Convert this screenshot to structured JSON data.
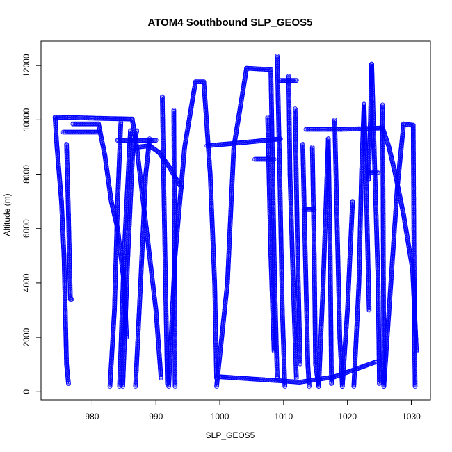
{
  "chart_data": {
    "type": "scatter",
    "title": "ATOM4 Southbound SLP_GEOS5",
    "xlabel": "SLP_GEOS5",
    "ylabel": "Altitude (m)",
    "xlim": [
      972,
      1033
    ],
    "ylim": [
      -300,
      12900
    ],
    "x_ticks": [
      980,
      990,
      1000,
      1010,
      1020,
      1030
    ],
    "y_ticks": [
      0,
      2000,
      4000,
      6000,
      8000,
      10000,
      12000
    ],
    "grid": false,
    "legend": "none",
    "marker": "open-circle",
    "series": [
      {
        "color": "#0000ff",
        "segments": [
          [
            [
              974.2,
              10100
            ],
            [
              982.0,
              10050
            ],
            [
              986.3,
              10030
            ]
          ],
          [
            [
              974.2,
              10100
            ],
            [
              974.5,
              9000
            ],
            [
              975.2,
              7000
            ],
            [
              975.6,
              5000
            ],
            [
              975.8,
              3000
            ],
            [
              976.0,
              1000
            ],
            [
              976.3,
              300
            ]
          ],
          [
            [
              975.5,
              9550
            ],
            [
              981.2,
              9550
            ]
          ],
          [
            [
              976.0,
              9100
            ],
            [
              976.3,
              6500
            ],
            [
              976.6,
              3400
            ],
            [
              976.8,
              3400
            ]
          ],
          [
            [
              977.0,
              9850
            ],
            [
              981.0,
              9850
            ],
            [
              982.0,
              8700
            ],
            [
              983.0,
              7000
            ],
            [
              984.0,
              6000
            ],
            [
              985.0,
              4000
            ],
            [
              985.4,
              2000
            ]
          ],
          [
            [
              982.8,
              200
            ],
            [
              983.5,
              3000
            ],
            [
              984.0,
              7000
            ],
            [
              984.5,
              9900
            ]
          ],
          [
            [
              984.3,
              200
            ],
            [
              985.0,
              5000
            ],
            [
              986.0,
              9600
            ]
          ],
          [
            [
              984.8,
              200
            ],
            [
              985.6,
              5000
            ],
            [
              986.4,
              9000
            ],
            [
              987.0,
              9600
            ]
          ],
          [
            [
              984.0,
              9250
            ],
            [
              990.0,
              9250
            ]
          ],
          [
            [
              986.3,
              10000
            ],
            [
              987.0,
              9000
            ],
            [
              988.5,
              6000
            ],
            [
              990.0,
              3000
            ],
            [
              990.8,
              500
            ]
          ],
          [
            [
              986.8,
              200
            ],
            [
              987.6,
              4000
            ],
            [
              988.4,
              8000
            ],
            [
              989.0,
              9300
            ]
          ],
          [
            [
              987.2,
              9000
            ],
            [
              989.0,
              9050
            ],
            [
              990.5,
              8800
            ],
            [
              992.0,
              8300
            ],
            [
              994.0,
              7500
            ]
          ],
          [
            [
              991.0,
              10850
            ],
            [
              991.2,
              8000
            ],
            [
              991.5,
              4000
            ],
            [
              991.8,
              300
            ]
          ],
          [
            [
              992.0,
              200
            ],
            [
              993.0,
              5000
            ],
            [
              994.5,
              9000
            ],
            [
              996.2,
              11400
            ]
          ],
          [
            [
              996.2,
              11400
            ],
            [
              997.5,
              11400
            ]
          ],
          [
            [
              997.5,
              11400
            ],
            [
              998.5,
              8000
            ],
            [
              999.2,
              4000
            ],
            [
              999.5,
              500
            ]
          ],
          [
            [
              992.8,
              10350
            ],
            [
              992.9,
              6000
            ],
            [
              993.0,
              200
            ]
          ],
          [
            [
              998.0,
              9050
            ],
            [
              1003.0,
              9150
            ],
            [
              1009.5,
              9300
            ]
          ],
          [
            [
              999.5,
              200
            ],
            [
              1001.2,
              4000
            ],
            [
              1002.2,
              9000
            ],
            [
              1004.2,
              11900
            ]
          ],
          [
            [
              1004.2,
              11900
            ],
            [
              1008.0,
              11850
            ]
          ],
          [
            [
              1005.5,
              8550
            ],
            [
              1008.5,
              8550
            ]
          ],
          [
            [
              1008.0,
              11850
            ],
            [
              1008.3,
              8000
            ],
            [
              1008.6,
              4000
            ],
            [
              1009.0,
              500
            ]
          ],
          [
            [
              1009.0,
              12350
            ],
            [
              1009.4,
              8000
            ],
            [
              1009.8,
              3000
            ],
            [
              1010.2,
              200
            ]
          ],
          [
            [
              1007.5,
              10100
            ],
            [
              1008.0,
              5000
            ],
            [
              1008.5,
              1500
            ]
          ],
          [
            [
              1009.4,
              11450
            ],
            [
              1012.0,
              11450
            ]
          ],
          [
            [
              1010.8,
              11600
            ],
            [
              1011.0,
              8000
            ],
            [
              1011.5,
              4000
            ],
            [
              1012.0,
              500
            ]
          ],
          [
            [
              1011.8,
              10400
            ],
            [
              1012.2,
              5000
            ],
            [
              1012.6,
              1000
            ]
          ],
          [
            [
              1013.0,
              9100
            ],
            [
              1013.4,
              5000
            ],
            [
              1013.8,
              1000
            ],
            [
              1014.0,
              200
            ]
          ],
          [
            [
              1013.2,
              6700
            ],
            [
              1014.8,
              6700
            ]
          ],
          [
            [
              1013.5,
              9650
            ],
            [
              1019.0,
              9650
            ],
            [
              1025.5,
              9700
            ]
          ],
          [
            [
              1014.5,
              9000
            ],
            [
              1014.8,
              5000
            ],
            [
              1015.0,
              1000
            ],
            [
              1015.5,
              200
            ]
          ],
          [
            [
              1015.5,
              200
            ],
            [
              1016.2,
              4000
            ],
            [
              1017.0,
              9300
            ]
          ],
          [
            [
              1017.0,
              9300
            ],
            [
              1017.3,
              5000
            ],
            [
              1017.5,
              300
            ]
          ],
          [
            [
              1018.0,
              10000
            ],
            [
              1018.4,
              6000
            ],
            [
              1018.8,
              2000
            ],
            [
              1019.2,
              200
            ]
          ],
          [
            [
              1019.2,
              200
            ],
            [
              1020.0,
              3000
            ],
            [
              1020.8,
              7000
            ]
          ],
          [
            [
              1021.0,
              200
            ],
            [
              1021.8,
              4000
            ],
            [
              1022.2,
              8000
            ],
            [
              1022.6,
              10600
            ]
          ],
          [
            [
              1022.6,
              10600
            ],
            [
              1023.0,
              7000
            ],
            [
              1023.4,
              3000
            ]
          ],
          [
            [
              1023.3,
              7800
            ],
            [
              1023.6,
              10000
            ],
            [
              1023.8,
              12050
            ]
          ],
          [
            [
              1023.8,
              12050
            ],
            [
              1024.3,
              8000
            ],
            [
              1024.8,
              4000
            ],
            [
              1025.0,
              300
            ]
          ],
          [
            [
              1023.2,
              8050
            ],
            [
              1024.8,
              8050
            ]
          ],
          [
            [
              1025.5,
              10550
            ],
            [
              1025.6,
              6000
            ],
            [
              1025.7,
              200
            ]
          ],
          [
            [
              1025.5,
              9700
            ],
            [
              1026.5,
              9000
            ],
            [
              1027.5,
              8000
            ],
            [
              1028.8,
              6500
            ],
            [
              1030.2,
              4500
            ],
            [
              1030.8,
              1500
            ]
          ],
          [
            [
              1025.7,
              200
            ],
            [
              1026.8,
              4000
            ],
            [
              1027.8,
              7500
            ],
            [
              1028.8,
              9850
            ]
          ],
          [
            [
              1028.8,
              9850
            ],
            [
              1030.3,
              9800
            ],
            [
              1030.4,
              6000
            ],
            [
              1030.5,
              2000
            ],
            [
              1030.6,
              200
            ]
          ],
          [
            [
              1000.0,
              550
            ],
            [
              1009.5,
              400
            ],
            [
              1012.5,
              350
            ]
          ],
          [
            [
              1012.5,
              350
            ],
            [
              1018.0,
              550
            ],
            [
              1024.5,
              1100
            ]
          ]
        ]
      }
    ]
  }
}
